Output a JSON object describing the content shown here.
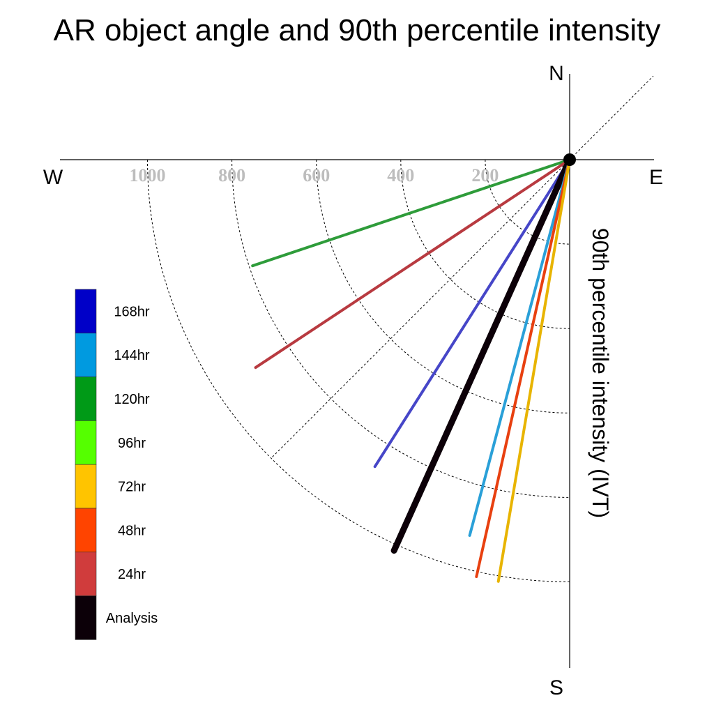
{
  "chart_data": {
    "type": "polar-vector",
    "title": "AR object angle and 90th percentile intensity",
    "radial_label": "90th percentile intensity (IVT)",
    "compass": {
      "north": "N",
      "south": "S",
      "east": "E",
      "west": "W"
    },
    "radial_ticks": [
      200,
      400,
      600,
      800,
      1000
    ],
    "radial_tick_labels": [
      "200",
      "400",
      "600",
      "800",
      "1000"
    ],
    "rmax": 1000,
    "grid_rays_deg": [
      45,
      225
    ],
    "legend": [
      {
        "label": "168hr",
        "color": "#0000c8"
      },
      {
        "label": "144hr",
        "color": "#009ae0"
      },
      {
        "label": "120hr",
        "color": "#009a17"
      },
      {
        "label": "96hr",
        "color": "#55ff00"
      },
      {
        "label": "72hr",
        "color": "#ffc400"
      },
      {
        "label": "48hr",
        "color": "#ff4400"
      },
      {
        "label": "24hr",
        "color": "#d03c3c"
      },
      {
        "label": "Analysis",
        "color": "#0c0008"
      }
    ],
    "series": [
      {
        "name": "120hr",
        "angle_deg": 251.5,
        "intensity": 792,
        "color": "#2e9c3a"
      },
      {
        "name": "24hr",
        "angle_deg": 236.5,
        "intensity": 892,
        "color": "#b83a40"
      },
      {
        "name": "168hr",
        "angle_deg": 212.4,
        "intensity": 861,
        "color": "#4646c8"
      },
      {
        "name": "Analysis",
        "angle_deg": 204.2,
        "intensity": 1015,
        "color": "#0c0008"
      },
      {
        "name": "144hr",
        "angle_deg": 194.9,
        "intensity": 921,
        "color": "#2aa0d8"
      },
      {
        "name": "48hr",
        "angle_deg": 192.6,
        "intensity": 1012,
        "color": "#e84010"
      },
      {
        "name": "72hr",
        "angle_deg": 189.6,
        "intensity": 1013,
        "color": "#e8b400"
      }
    ]
  }
}
